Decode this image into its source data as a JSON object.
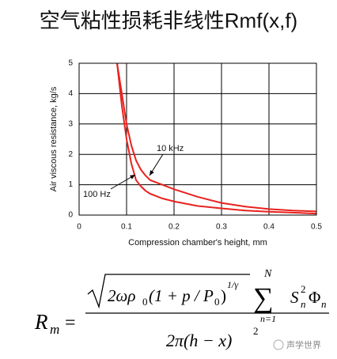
{
  "chart_data": {
    "type": "line",
    "title": "空气粘性损耗非线性Rmf(x,f)",
    "x_label": "Compression chamber's height, mm",
    "y_label": "Air viscous resistance, kg/s",
    "x": [
      0.08,
      0.09,
      0.1,
      0.11,
      0.12,
      0.13,
      0.14,
      0.15,
      0.175,
      0.2,
      0.25,
      0.3,
      0.35,
      0.4,
      0.45,
      0.5
    ],
    "series": [
      {
        "name": "100 Hz",
        "color": "#e8221e",
        "values": [
          5.0,
          3.6,
          2.5,
          1.7,
          1.15,
          0.95,
          0.8,
          0.7,
          0.55,
          0.45,
          0.3,
          0.22,
          0.15,
          0.11,
          0.08,
          0.05
        ]
      },
      {
        "name": "10 kHz",
        "color": "#e8221e",
        "values": [
          5.0,
          4.0,
          3.0,
          2.3,
          1.8,
          1.5,
          1.3,
          1.15,
          1.0,
          0.85,
          0.6,
          0.4,
          0.28,
          0.2,
          0.15,
          0.12
        ]
      }
    ],
    "xlim": [
      0,
      0.5
    ],
    "ylim": [
      0,
      5
    ],
    "xticks": [
      0,
      0.1,
      0.2,
      0.3,
      0.4,
      0.5
    ],
    "yticks": [
      0,
      1,
      2,
      3,
      4,
      5
    ],
    "grid": true
  },
  "formula": {
    "lhs": "R",
    "lhs_sub": "m",
    "eq": "=",
    "num_a": "2ωρ",
    "num_a_sub": "0",
    "num_b": "(1 + p / P",
    "num_b_sub": "0",
    "num_c": ")",
    "num_exp": "1/γ",
    "sum": "∑",
    "sum_top": "N",
    "sum_bottom": "n=1",
    "s": "S",
    "s_sub": "n",
    "s_sup": "2",
    "phi": "Φ",
    "phi_sub": "n",
    "den": "2π(h − x)",
    "den_sup": "2"
  },
  "watermark": "声学世界"
}
